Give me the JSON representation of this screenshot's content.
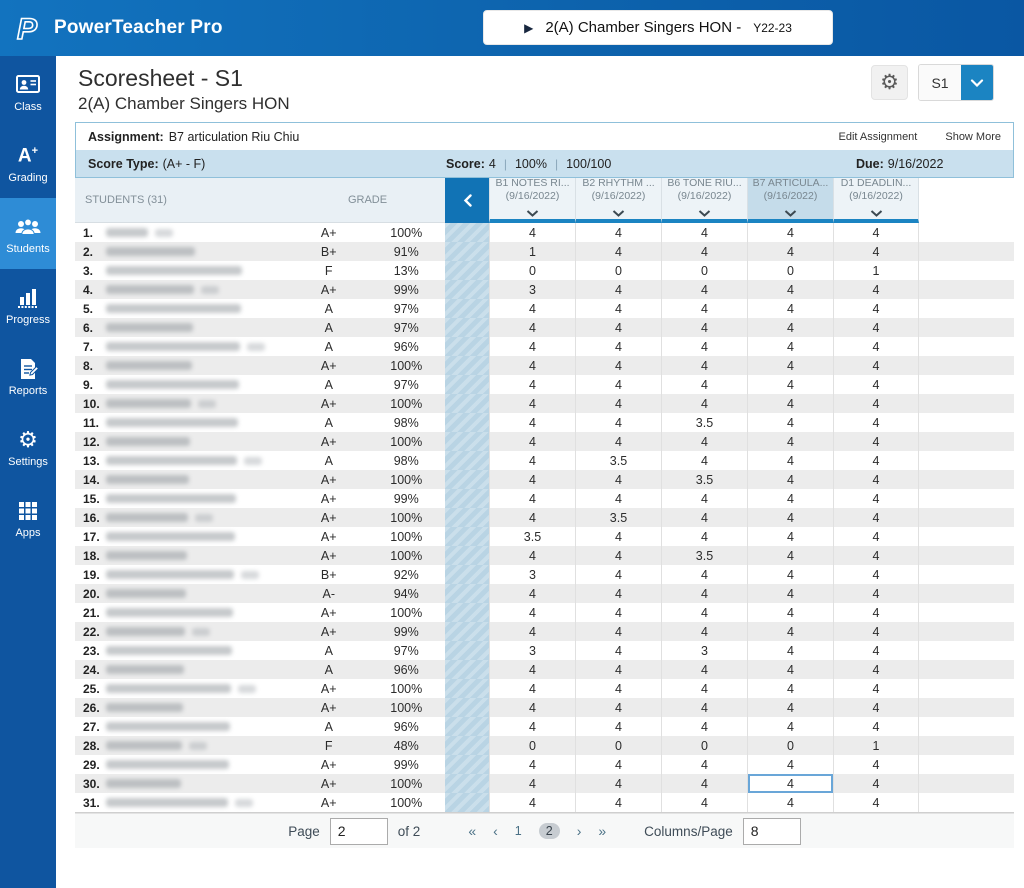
{
  "topbar": {
    "app_title": "PowerTeacher Pro",
    "class_selector": {
      "label": "2(A) Chamber Singers HON -",
      "term": "Y22-23"
    }
  },
  "sidebar": {
    "active": "Students",
    "items": [
      {
        "label": "Class",
        "icon": "class-icon"
      },
      {
        "label": "Grading",
        "icon": "grading-icon"
      },
      {
        "label": "Students",
        "icon": "students-icon"
      },
      {
        "label": "Progress",
        "icon": "progress-icon"
      },
      {
        "label": "Reports",
        "icon": "reports-icon"
      },
      {
        "label": "Settings",
        "icon": "settings-icon"
      },
      {
        "label": "Apps",
        "icon": "apps-icon"
      }
    ]
  },
  "page": {
    "title": "Scoresheet - S1",
    "subtitle": "2(A) Chamber Singers HON",
    "term_selector_value": "S1"
  },
  "assignment": {
    "label": "Assignment:",
    "name": "B7 articulation Riu Chiu",
    "edit_link": "Edit Assignment",
    "show_more_link": "Show More",
    "score_type_label": "Score Type:",
    "score_type": "(A+ - F)",
    "score_label": "Score:",
    "score_value": "4",
    "score_percent": "100%",
    "score_fraction": "100/100",
    "due_label": "Due:",
    "due_date": "9/16/2022"
  },
  "table": {
    "students_header": "STUDENTS (31)",
    "grade_header": "GRADE",
    "columns": [
      {
        "name": "B1 NOTES RI...",
        "date": "(9/16/2022)",
        "selected": false
      },
      {
        "name": "B2 RHYTHM ...",
        "date": "(9/16/2022)",
        "selected": false
      },
      {
        "name": "B6 TONE RIU...",
        "date": "(9/16/2022)",
        "selected": false
      },
      {
        "name": "B7 ARTICULA...",
        "date": "(9/16/2022)",
        "selected": true
      },
      {
        "name": "D1 DEADLIN...",
        "date": "(9/16/2022)",
        "selected": false
      }
    ],
    "selected_cell": {
      "row_index": 29,
      "score_index": 3
    },
    "rows": [
      {
        "num": "1.",
        "grade": "A+",
        "percent": "100%",
        "scores": [
          "4",
          "4",
          "4",
          "4",
          "4"
        ]
      },
      {
        "num": "2.",
        "grade": "B+",
        "percent": "91%",
        "scores": [
          "1",
          "4",
          "4",
          "4",
          "4"
        ]
      },
      {
        "num": "3.",
        "grade": "F",
        "percent": "13%",
        "scores": [
          "0",
          "0",
          "0",
          "0",
          "1"
        ]
      },
      {
        "num": "4.",
        "grade": "A+",
        "percent": "99%",
        "scores": [
          "3",
          "4",
          "4",
          "4",
          "4"
        ]
      },
      {
        "num": "5.",
        "grade": "A",
        "percent": "97%",
        "scores": [
          "4",
          "4",
          "4",
          "4",
          "4"
        ]
      },
      {
        "num": "6.",
        "grade": "A",
        "percent": "97%",
        "scores": [
          "4",
          "4",
          "4",
          "4",
          "4"
        ]
      },
      {
        "num": "7.",
        "grade": "A",
        "percent": "96%",
        "scores": [
          "4",
          "4",
          "4",
          "4",
          "4"
        ]
      },
      {
        "num": "8.",
        "grade": "A+",
        "percent": "100%",
        "scores": [
          "4",
          "4",
          "4",
          "4",
          "4"
        ]
      },
      {
        "num": "9.",
        "grade": "A",
        "percent": "97%",
        "scores": [
          "4",
          "4",
          "4",
          "4",
          "4"
        ]
      },
      {
        "num": "10.",
        "grade": "A+",
        "percent": "100%",
        "scores": [
          "4",
          "4",
          "4",
          "4",
          "4"
        ]
      },
      {
        "num": "11.",
        "grade": "A",
        "percent": "98%",
        "scores": [
          "4",
          "4",
          "3.5",
          "4",
          "4"
        ]
      },
      {
        "num": "12.",
        "grade": "A+",
        "percent": "100%",
        "scores": [
          "4",
          "4",
          "4",
          "4",
          "4"
        ]
      },
      {
        "num": "13.",
        "grade": "A",
        "percent": "98%",
        "scores": [
          "4",
          "3.5",
          "4",
          "4",
          "4"
        ]
      },
      {
        "num": "14.",
        "grade": "A+",
        "percent": "100%",
        "scores": [
          "4",
          "4",
          "3.5",
          "4",
          "4"
        ]
      },
      {
        "num": "15.",
        "grade": "A+",
        "percent": "99%",
        "scores": [
          "4",
          "4",
          "4",
          "4",
          "4"
        ]
      },
      {
        "num": "16.",
        "grade": "A+",
        "percent": "100%",
        "scores": [
          "4",
          "3.5",
          "4",
          "4",
          "4"
        ]
      },
      {
        "num": "17.",
        "grade": "A+",
        "percent": "100%",
        "scores": [
          "3.5",
          "4",
          "4",
          "4",
          "4"
        ]
      },
      {
        "num": "18.",
        "grade": "A+",
        "percent": "100%",
        "scores": [
          "4",
          "4",
          "3.5",
          "4",
          "4"
        ]
      },
      {
        "num": "19.",
        "grade": "B+",
        "percent": "92%",
        "scores": [
          "3",
          "4",
          "4",
          "4",
          "4"
        ]
      },
      {
        "num": "20.",
        "grade": "A-",
        "percent": "94%",
        "scores": [
          "4",
          "4",
          "4",
          "4",
          "4"
        ]
      },
      {
        "num": "21.",
        "grade": "A+",
        "percent": "100%",
        "scores": [
          "4",
          "4",
          "4",
          "4",
          "4"
        ]
      },
      {
        "num": "22.",
        "grade": "A+",
        "percent": "99%",
        "scores": [
          "4",
          "4",
          "4",
          "4",
          "4"
        ]
      },
      {
        "num": "23.",
        "grade": "A",
        "percent": "97%",
        "scores": [
          "3",
          "4",
          "3",
          "4",
          "4"
        ]
      },
      {
        "num": "24.",
        "grade": "A",
        "percent": "96%",
        "scores": [
          "4",
          "4",
          "4",
          "4",
          "4"
        ]
      },
      {
        "num": "25.",
        "grade": "A+",
        "percent": "100%",
        "scores": [
          "4",
          "4",
          "4",
          "4",
          "4"
        ]
      },
      {
        "num": "26.",
        "grade": "A+",
        "percent": "100%",
        "scores": [
          "4",
          "4",
          "4",
          "4",
          "4"
        ]
      },
      {
        "num": "27.",
        "grade": "A",
        "percent": "96%",
        "scores": [
          "4",
          "4",
          "4",
          "4",
          "4"
        ]
      },
      {
        "num": "28.",
        "grade": "F",
        "percent": "48%",
        "scores": [
          "0",
          "0",
          "0",
          "0",
          "1"
        ]
      },
      {
        "num": "29.",
        "grade": "A+",
        "percent": "99%",
        "scores": [
          "4",
          "4",
          "4",
          "4",
          "4"
        ]
      },
      {
        "num": "30.",
        "grade": "A+",
        "percent": "100%",
        "scores": [
          "4",
          "4",
          "4",
          "4",
          "4"
        ]
      },
      {
        "num": "31.",
        "grade": "A+",
        "percent": "100%",
        "scores": [
          "4",
          "4",
          "4",
          "4",
          "4"
        ]
      }
    ]
  },
  "footer": {
    "page_label": "Page",
    "page_value": "2",
    "of_label": "of 2",
    "first_arrow": "«",
    "prev_arrow": "‹",
    "pages": [
      "1",
      "2"
    ],
    "current_page": "2",
    "next_arrow": "›",
    "last_arrow": "»",
    "columns_label": "Columns/Page",
    "columns_value": "8"
  },
  "icons": {
    "logo": "P",
    "class_selector_play": "▶",
    "header_gear": "⚙",
    "sidebar_settings_gear": "⚙",
    "term_chevron": "chevron-down",
    "column_sort_chevron": "chevron-down",
    "collapse_chevron": "chevron-left"
  },
  "colors": {
    "topbar_blue": "#0d63ad",
    "sidebar_blue": "#0f55a0",
    "sidebar_active_blue": "#2e8cd6",
    "accent_blue": "#1b84c2",
    "collapse_button_blue": "#1173b5",
    "selected_column_bg": "#c5dcea",
    "assignment_bar_bg": "#c9e0ee",
    "collapsed_strip_bg": "#b9d4e4",
    "row_alt_bg": "#ececec",
    "selected_cell_border": "#69a6d8"
  }
}
